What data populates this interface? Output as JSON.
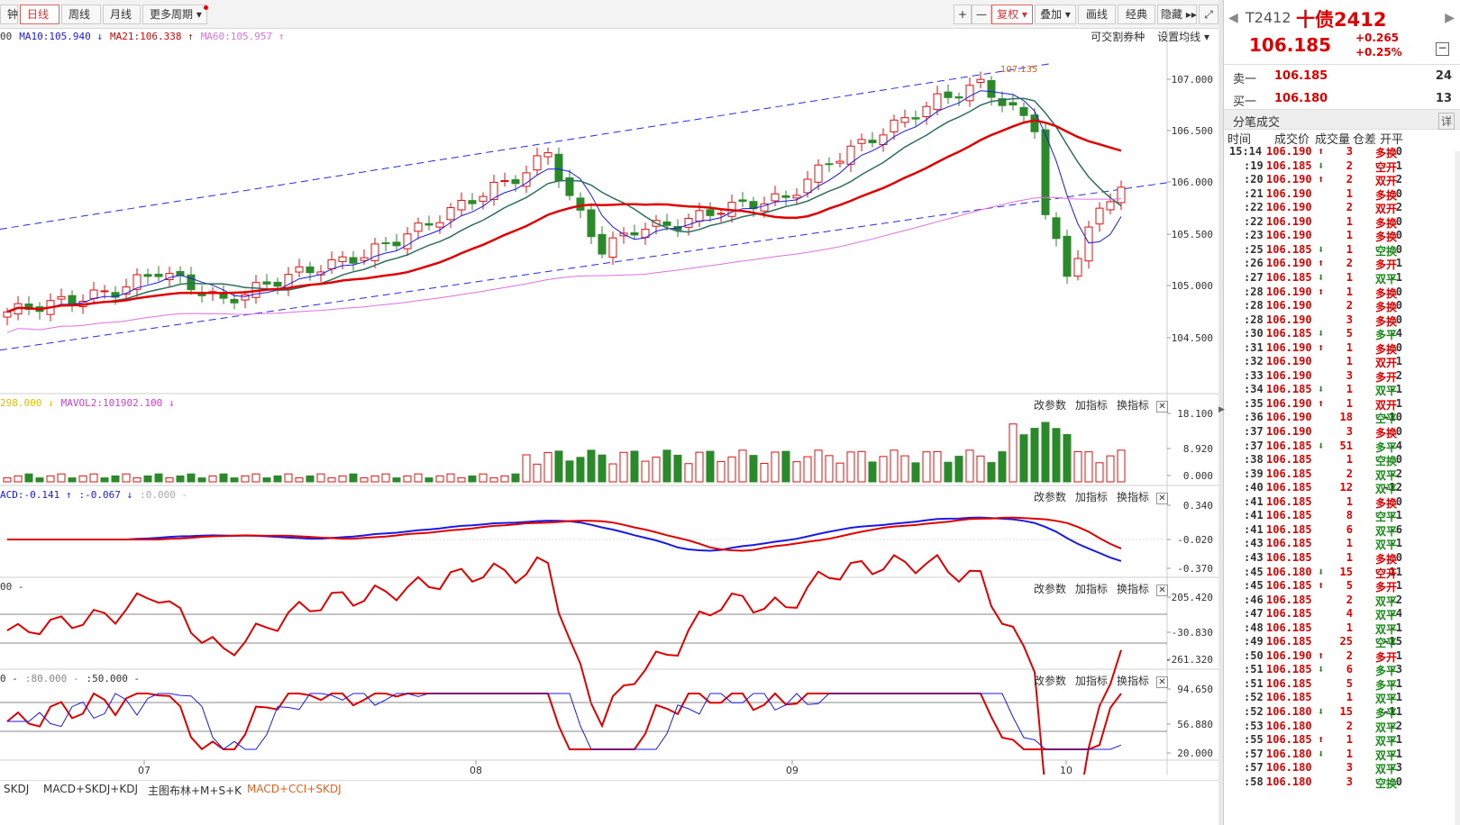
{
  "toolbar": {
    "left_tabs": [
      {
        "label": "钟",
        "active": false
      },
      {
        "label": "日线",
        "active": true
      },
      {
        "label": "周线",
        "active": false
      },
      {
        "label": "月线",
        "active": false
      },
      {
        "label": "更多周期",
        "active": false
      }
    ],
    "right_buttons": [
      "+",
      "—",
      "复权",
      "叠加",
      "画线",
      "经典",
      "隐藏",
      "⤢"
    ]
  },
  "main_chart": {
    "ma_legend": [
      {
        "text": "00",
        "color": "#333"
      },
      {
        "text": "MA10:105.940 ↓",
        "color": "#1a1ae6"
      },
      {
        "text": "MA21:106.338 ↑",
        "color": "#e00000"
      },
      {
        "text": "MA60:105.957 ↑",
        "color": "#e070e0"
      }
    ],
    "right_controls": [
      "可交割券种",
      "设置均线"
    ],
    "y_labels": [
      "107.000",
      "106.500",
      "106.000",
      "105.500",
      "105.000",
      "104.500"
    ],
    "high_annotation": "107.135"
  },
  "volume_panel": {
    "legend": [
      {
        "text": "298.000 ↓",
        "color": "#e0c000"
      },
      {
        "text": "MAVOL2:101902.100 ↓",
        "color": "#d040d0"
      }
    ],
    "y_labels": [
      "18.100",
      "8.920",
      "0.000"
    ]
  },
  "macd_panel": {
    "legend": [
      {
        "text": "ACD:-0.141 ↑",
        "color": "#1a1ae6"
      },
      {
        "text": ":-0.067 ↓",
        "color": "#1a1ae6"
      },
      {
        "text": ":0.000 -",
        "color": "#aaa"
      }
    ],
    "y_labels": [
      "0.340",
      "-0.020",
      "-0.370"
    ]
  },
  "cci_panel": {
    "legend": [
      {
        "text": "00 -",
        "color": "#333"
      }
    ],
    "y_labels": [
      "205.420",
      "-30.830",
      "-261.320"
    ]
  },
  "skdj_panel": {
    "legend": [
      {
        "text": "0 -",
        "color": "#333"
      },
      {
        "text": ":80.000 -",
        "color": "#888"
      },
      {
        "text": ":50.000 -",
        "color": "#333"
      }
    ],
    "y_labels": [
      "94.650",
      "56.880",
      "20.000"
    ]
  },
  "panel_controls": [
    "改参数",
    "加指标",
    "换指标"
  ],
  "x_labels": [
    "07",
    "08",
    "09",
    "10"
  ],
  "bottom_tabs": [
    {
      "label": "SKDJ",
      "active": false
    },
    {
      "label": "MACD+SKDJ+KDJ",
      "active": false
    },
    {
      "label": "主图布林+M+S+K",
      "active": false
    },
    {
      "label": "MACD+CCI+SKDJ",
      "active": true
    }
  ],
  "quote": {
    "code": "T2412",
    "name": "十债2412",
    "price": "106.185",
    "change": "+0.265",
    "change_pct": "+0.25%",
    "sell_label": "卖一",
    "sell_price": "106.185",
    "sell_vol": "24",
    "buy_label": "买一",
    "buy_price": "106.180",
    "buy_vol": "13",
    "trades_title": "分笔成交",
    "detail_btn": "详",
    "headers": [
      "时间",
      "成交价",
      "成交量",
      "仓差",
      "开平"
    ]
  },
  "trades": [
    {
      "t": "15:14",
      "p": "106.190",
      "dir": "up",
      "v": "3",
      "d": "0",
      "k": "多换"
    },
    {
      "t": ":19",
      "p": "106.185",
      "dir": "down",
      "v": "2",
      "d": "1",
      "k": "空开"
    },
    {
      "t": ":20",
      "p": "106.190",
      "dir": "up",
      "v": "2",
      "d": "2",
      "k": "双开"
    },
    {
      "t": ":21",
      "p": "106.190",
      "dir": "",
      "v": "1",
      "d": "0",
      "k": "多换"
    },
    {
      "t": ":22",
      "p": "106.190",
      "dir": "",
      "v": "2",
      "d": "2",
      "k": "双开"
    },
    {
      "t": ":22",
      "p": "106.190",
      "dir": "",
      "v": "1",
      "d": "0",
      "k": "多换"
    },
    {
      "t": ":23",
      "p": "106.190",
      "dir": "",
      "v": "1",
      "d": "0",
      "k": "多换"
    },
    {
      "t": ":25",
      "p": "106.185",
      "dir": "down",
      "v": "1",
      "d": "0",
      "k": "空换"
    },
    {
      "t": ":26",
      "p": "106.190",
      "dir": "up",
      "v": "2",
      "d": "1",
      "k": "多开"
    },
    {
      "t": ":27",
      "p": "106.185",
      "dir": "down",
      "v": "1",
      "d": "-1",
      "k": "双平"
    },
    {
      "t": ":28",
      "p": "106.190",
      "dir": "up",
      "v": "1",
      "d": "0",
      "k": "多换"
    },
    {
      "t": ":28",
      "p": "106.190",
      "dir": "",
      "v": "2",
      "d": "0",
      "k": "多换"
    },
    {
      "t": ":28",
      "p": "106.190",
      "dir": "",
      "v": "3",
      "d": "0",
      "k": "多换"
    },
    {
      "t": ":30",
      "p": "106.185",
      "dir": "down",
      "v": "5",
      "d": "-4",
      "k": "多平"
    },
    {
      "t": ":31",
      "p": "106.190",
      "dir": "up",
      "v": "1",
      "d": "0",
      "k": "多换"
    },
    {
      "t": ":32",
      "p": "106.190",
      "dir": "",
      "v": "1",
      "d": "1",
      "k": "双开"
    },
    {
      "t": ":33",
      "p": "106.190",
      "dir": "",
      "v": "3",
      "d": "2",
      "k": "多开"
    },
    {
      "t": ":34",
      "p": "106.185",
      "dir": "down",
      "v": "1",
      "d": "-1",
      "k": "双平"
    },
    {
      "t": ":35",
      "p": "106.190",
      "dir": "up",
      "v": "1",
      "d": "1",
      "k": "双开"
    },
    {
      "t": ":36",
      "p": "106.190",
      "dir": "",
      "v": "18",
      "d": "-10",
      "k": "空平"
    },
    {
      "t": ":37",
      "p": "106.190",
      "dir": "",
      "v": "3",
      "d": "0",
      "k": "多换"
    },
    {
      "t": ":37",
      "p": "106.185",
      "dir": "down",
      "v": "51",
      "d": "-4",
      "k": "多平"
    },
    {
      "t": ":38",
      "p": "106.185",
      "dir": "",
      "v": "1",
      "d": "0",
      "k": "空换"
    },
    {
      "t": ":39",
      "p": "106.185",
      "dir": "",
      "v": "2",
      "d": "-2",
      "k": "双平"
    },
    {
      "t": ":40",
      "p": "106.185",
      "dir": "",
      "v": "12",
      "d": "-12",
      "k": "双平"
    },
    {
      "t": ":41",
      "p": "106.185",
      "dir": "",
      "v": "1",
      "d": "0",
      "k": "多换"
    },
    {
      "t": ":41",
      "p": "106.185",
      "dir": "",
      "v": "8",
      "d": "-1",
      "k": "空平"
    },
    {
      "t": ":41",
      "p": "106.185",
      "dir": "",
      "v": "6",
      "d": "-6",
      "k": "双平"
    },
    {
      "t": ":43",
      "p": "106.185",
      "dir": "",
      "v": "1",
      "d": "-1",
      "k": "双平"
    },
    {
      "t": ":43",
      "p": "106.185",
      "dir": "",
      "v": "1",
      "d": "0",
      "k": "多换"
    },
    {
      "t": ":45",
      "p": "106.180",
      "dir": "down",
      "v": "15",
      "d": "11",
      "k": "空开"
    },
    {
      "t": ":45",
      "p": "106.185",
      "dir": "up",
      "v": "5",
      "d": "1",
      "k": "多开"
    },
    {
      "t": ":46",
      "p": "106.185",
      "dir": "",
      "v": "2",
      "d": "-2",
      "k": "双平"
    },
    {
      "t": ":47",
      "p": "106.185",
      "dir": "",
      "v": "4",
      "d": "-4",
      "k": "双平"
    },
    {
      "t": ":48",
      "p": "106.185",
      "dir": "",
      "v": "1",
      "d": "-1",
      "k": "双平"
    },
    {
      "t": ":49",
      "p": "106.185",
      "dir": "",
      "v": "25",
      "d": "-15",
      "k": "空平"
    },
    {
      "t": ":50",
      "p": "106.190",
      "dir": "up",
      "v": "2",
      "d": "1",
      "k": "多开"
    },
    {
      "t": ":51",
      "p": "106.185",
      "dir": "down",
      "v": "6",
      "d": "-3",
      "k": "多平"
    },
    {
      "t": ":51",
      "p": "106.185",
      "dir": "",
      "v": "5",
      "d": "-1",
      "k": "多平"
    },
    {
      "t": ":52",
      "p": "106.185",
      "dir": "",
      "v": "1",
      "d": "-1",
      "k": "双平"
    },
    {
      "t": ":52",
      "p": "106.180",
      "dir": "down",
      "v": "15",
      "d": "-11",
      "k": "多平"
    },
    {
      "t": ":53",
      "p": "106.180",
      "dir": "",
      "v": "2",
      "d": "-2",
      "k": "双平"
    },
    {
      "t": ":55",
      "p": "106.185",
      "dir": "up",
      "v": "1",
      "d": "-1",
      "k": "双平"
    },
    {
      "t": ":57",
      "p": "106.180",
      "dir": "down",
      "v": "1",
      "d": "-1",
      "k": "双平"
    },
    {
      "t": ":57",
      "p": "106.180",
      "dir": "",
      "v": "3",
      "d": "-3",
      "k": "双平"
    },
    {
      "t": ":58",
      "p": "106.180",
      "dir": "",
      "v": "3",
      "d": "0",
      "k": "空换"
    }
  ],
  "colors": {
    "up": "#e00000",
    "down": "#1a8a1a",
    "bull_candle": "#e01010",
    "bear_candle": "#2a8a2a",
    "ma_blue": "#1a1ae6",
    "ma_teal": "#2e6e5e",
    "ma_red": "#e00000",
    "ma_pink": "#e070e0",
    "price_red": "#e00000"
  }
}
